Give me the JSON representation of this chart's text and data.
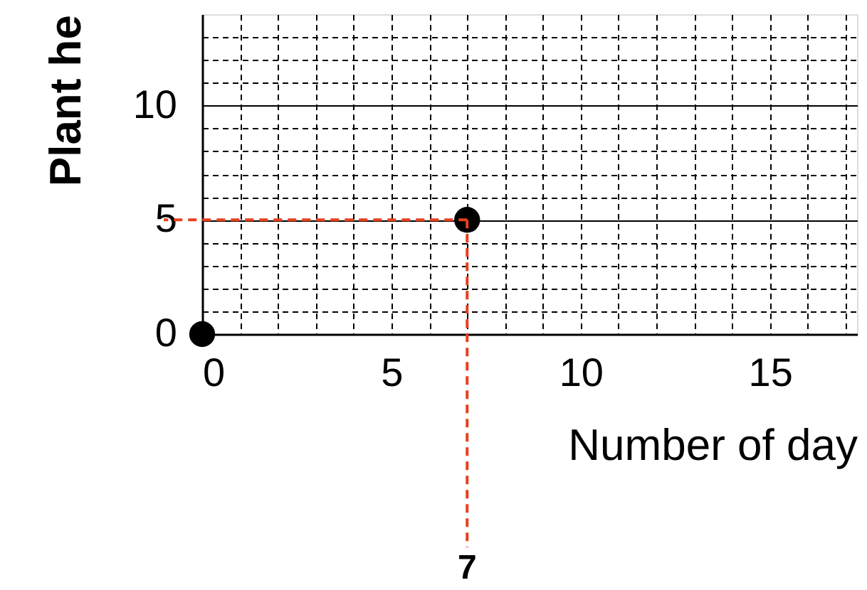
{
  "chart_data": {
    "type": "scatter",
    "xlabel": "Number of day",
    "ylabel": "Plant he",
    "x": [
      0,
      7
    ],
    "values": [
      0,
      5
    ],
    "color": "#000000",
    "marker": "circle",
    "xlim": [
      0,
      17.3
    ],
    "ylim": [
      0,
      14
    ],
    "xticks": [
      0,
      {
        "value": 1,
        "label": null
      },
      {
        "value": 2,
        "label": null
      },
      {
        "value": 3,
        "label": null
      },
      {
        "value": 4,
        "label": null
      },
      5,
      {
        "value": 6,
        "label": null
      },
      {
        "value": 7,
        "label": null
      },
      {
        "value": 8,
        "label": null
      },
      {
        "value": 9,
        "label": null
      },
      10,
      {
        "value": 11,
        "label": null
      },
      {
        "value": 12,
        "label": null
      },
      {
        "value": 13,
        "label": null
      },
      {
        "value": 14,
        "label": null
      },
      15,
      {
        "value": 16,
        "label": null
      },
      {
        "value": 17,
        "label": null
      }
    ],
    "yticks": [
      0,
      {
        "value": 1,
        "label": null
      },
      {
        "value": 2,
        "label": null
      },
      {
        "value": 3,
        "label": null
      },
      {
        "value": 4,
        "label": null
      },
      5,
      {
        "value": 6,
        "label": null
      },
      {
        "value": 7,
        "label": null
      },
      {
        "value": 8,
        "label": null
      },
      {
        "value": 9,
        "label": null
      },
      10,
      {
        "value": 11,
        "label": null
      },
      {
        "value": 12,
        "label": null
      },
      {
        "value": 13,
        "label": null
      }
    ],
    "grid": true,
    "ref_lines": [
      {
        "axis": "x",
        "value": 7,
        "label": "7",
        "color": "#e8401c",
        "line_style": "dashed"
      },
      {
        "axis": "y",
        "value": 5,
        "label": null,
        "color": "#e8401c",
        "line_style": "dashed"
      }
    ]
  }
}
